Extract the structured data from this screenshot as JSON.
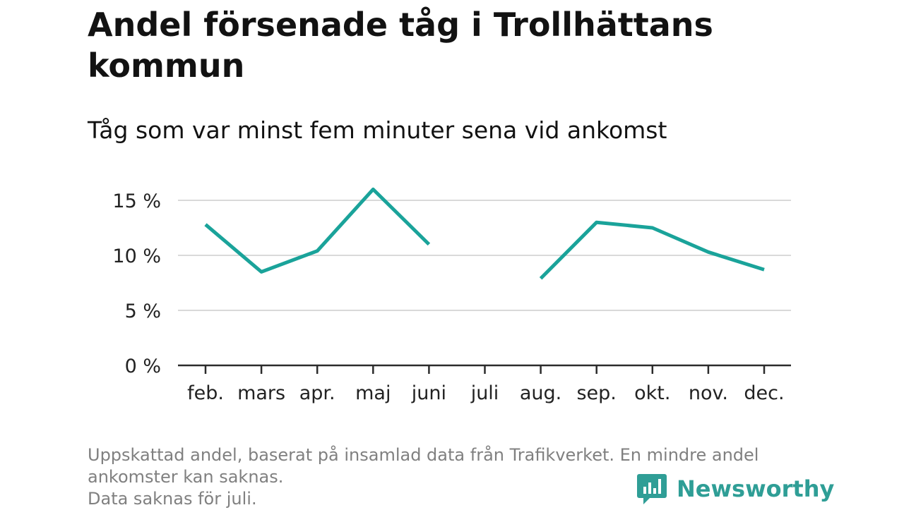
{
  "header": {
    "title": "Andel försenade tåg i Trollhättans kommun",
    "subtitle": "Tåg som var minst fem minuter sena vid ankomst"
  },
  "chart_data": {
    "type": "line",
    "title": "Andel försenade tåg i Trollhättans kommun",
    "subtitle": "Tåg som var minst fem minuter sena vid ankomst",
    "xlabel": "",
    "ylabel": "",
    "categories": [
      "feb.",
      "mars",
      "apr.",
      "maj",
      "juni",
      "juli",
      "aug.",
      "sep.",
      "okt.",
      "nov.",
      "dec."
    ],
    "series": [
      {
        "values": [
          12.8,
          8.5,
          10.4,
          16.0,
          11.0,
          null,
          7.9,
          13.0,
          12.5,
          10.3,
          8.7
        ]
      }
    ],
    "y_ticks": [
      {
        "value": 0,
        "label": "0 %"
      },
      {
        "value": 5,
        "label": "5 %"
      },
      {
        "value": 10,
        "label": "10 %"
      },
      {
        "value": 15,
        "label": "15 %"
      }
    ],
    "ylim": [
      0,
      17
    ],
    "grid": true,
    "line_color": "#1aa39a"
  },
  "footer": {
    "note_line1": "Uppskattad andel, baserat på insamlad data från Trafikverket. En mindre andel ankomster kan saknas.",
    "note_line2": "Data saknas för juli."
  },
  "brand": {
    "name": "Newsworthy",
    "logo_icon": "newsworthy-logo-icon",
    "color": "#2f9e96"
  }
}
